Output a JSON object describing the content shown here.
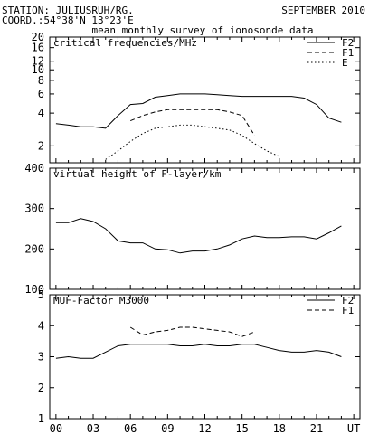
{
  "header": {
    "station": "STATION: JULIUSRUH/RG.",
    "coord": "COORD.:54°38'N 13°23'E",
    "date": "SEPTEMBER 2010",
    "subtitle": "mean monthly survey of ionosonde data"
  },
  "chart_data": [
    {
      "type": "line",
      "title": "critical frequencies/MHz",
      "scale": "log",
      "ylim": [
        1.4,
        20
      ],
      "yticks": [
        2,
        4,
        6,
        8,
        10,
        12,
        16,
        20
      ],
      "xlim": [
        -0.5,
        24.5
      ],
      "legend_position": "top-right",
      "series": [
        {
          "name": "F2",
          "style": "solid",
          "x": [
            0,
            1,
            2,
            3,
            4,
            5,
            6,
            7,
            8,
            9,
            10,
            11,
            12,
            13,
            14,
            15,
            16,
            17,
            18,
            19,
            20,
            21,
            22,
            23
          ],
          "y": [
            3.2,
            3.1,
            3.0,
            3.0,
            2.9,
            3.8,
            4.8,
            4.9,
            5.6,
            5.8,
            6.0,
            6.0,
            6.0,
            5.9,
            5.8,
            5.7,
            5.7,
            5.7,
            5.7,
            5.7,
            5.5,
            4.8,
            3.6,
            3.3
          ]
        },
        {
          "name": "F1",
          "style": "dashed",
          "x": [
            6,
            7,
            8,
            9,
            10,
            11,
            12,
            13,
            14,
            15,
            16
          ],
          "y": [
            3.4,
            3.8,
            4.1,
            4.3,
            4.3,
            4.3,
            4.3,
            4.3,
            4.1,
            3.8,
            2.5
          ]
        },
        {
          "name": "E",
          "style": "dotted",
          "x": [
            4,
            5,
            6,
            7,
            8,
            9,
            10,
            11,
            12,
            13,
            14,
            15,
            16,
            17,
            18
          ],
          "y": [
            1.5,
            1.8,
            2.2,
            2.6,
            2.9,
            3.0,
            3.1,
            3.1,
            3.0,
            2.9,
            2.8,
            2.5,
            2.1,
            1.8,
            1.6
          ]
        }
      ]
    },
    {
      "type": "line",
      "title": "virtual height of F-layer/km",
      "ylim": [
        100,
        400
      ],
      "yticks": [
        100,
        200,
        300,
        400
      ],
      "xlim": [
        -0.5,
        24.5
      ],
      "series": [
        {
          "name": "",
          "style": "solid",
          "x": [
            0,
            1,
            2,
            3,
            4,
            5,
            6,
            7,
            8,
            9,
            10,
            11,
            12,
            13,
            14,
            15,
            16,
            17,
            18,
            19,
            20,
            21,
            22,
            23
          ],
          "y": [
            265,
            265,
            275,
            268,
            250,
            220,
            215,
            215,
            200,
            198,
            190,
            195,
            195,
            200,
            210,
            225,
            232,
            228,
            228,
            230,
            230,
            225,
            240,
            257
          ]
        }
      ]
    },
    {
      "type": "line",
      "title": "MUF-Factor M3000",
      "ylim": [
        1,
        5
      ],
      "yticks": [
        1,
        2,
        3,
        4,
        5
      ],
      "xlim": [
        -0.5,
        24.5
      ],
      "xticks": [
        "00",
        "03",
        "06",
        "09",
        "12",
        "15",
        "18",
        "21",
        "UT"
      ],
      "legend_position": "top-right",
      "series": [
        {
          "name": "F2",
          "style": "solid",
          "x": [
            0,
            1,
            2,
            3,
            4,
            5,
            6,
            7,
            8,
            9,
            10,
            11,
            12,
            13,
            14,
            15,
            16,
            17,
            18,
            19,
            20,
            21,
            22,
            23
          ],
          "y": [
            2.95,
            3.0,
            2.95,
            2.95,
            3.15,
            3.35,
            3.4,
            3.4,
            3.4,
            3.4,
            3.35,
            3.35,
            3.4,
            3.35,
            3.35,
            3.4,
            3.4,
            3.3,
            3.2,
            3.15,
            3.15,
            3.2,
            3.15,
            3.0
          ]
        },
        {
          "name": "F1",
          "style": "dashed",
          "x": [
            6,
            7,
            8,
            9,
            10,
            11,
            12,
            13,
            14,
            15,
            16
          ],
          "y": [
            3.95,
            3.7,
            3.8,
            3.85,
            3.95,
            3.95,
            3.9,
            3.85,
            3.8,
            3.65,
            3.8
          ]
        }
      ]
    }
  ]
}
